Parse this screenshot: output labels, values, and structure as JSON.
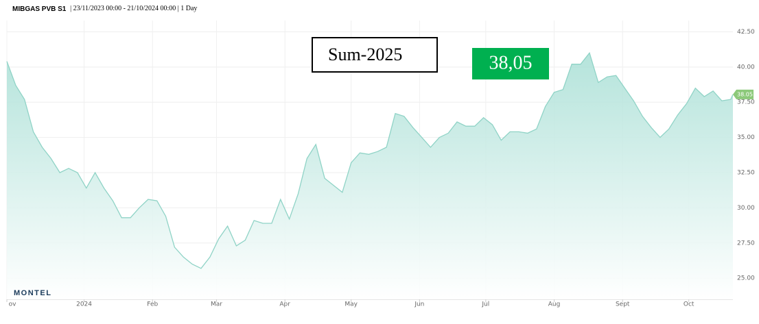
{
  "chart_data": {
    "type": "area",
    "title": "MIBGAS PVB S1",
    "subtitle": "| 23/11/2023 00:00 - 21/10/2024 00:00 | 1 Day",
    "logo": "MONTEL",
    "annotations": [
      {
        "text": "Sum-2025"
      },
      {
        "text": "38,05"
      }
    ],
    "color": "#8fd3c6",
    "grid": true,
    "xlim": [
      "2023-11-27",
      "2024-10-21"
    ],
    "ylim": [
      23.5,
      43.3
    ],
    "yticks": [
      {
        "value": 25,
        "label": "25.00"
      },
      {
        "value": 27.5,
        "label": "27.50"
      },
      {
        "value": 30,
        "label": "30.00"
      },
      {
        "value": 32.5,
        "label": "32.50"
      },
      {
        "value": 35,
        "label": "35.00"
      },
      {
        "value": 37.5,
        "label": "37.50"
      },
      {
        "value": 40,
        "label": "40.00"
      },
      {
        "value": 42.5,
        "label": "42.50"
      }
    ],
    "xticks": [
      {
        "value": "2023-11-27",
        "label": "ov"
      },
      {
        "value": "2024-01-01",
        "label": "2024"
      },
      {
        "value": "2024-02-01",
        "label": "Feb"
      },
      {
        "value": "2024-03-01",
        "label": "Mar"
      },
      {
        "value": "2024-04-01",
        "label": "Apr"
      },
      {
        "value": "2024-05-01",
        "label": "May"
      },
      {
        "value": "2024-06-01",
        "label": "Jun"
      },
      {
        "value": "2024-07-01",
        "label": "Jul"
      },
      {
        "value": "2024-08-01",
        "label": "Aug"
      },
      {
        "value": "2024-09-01",
        "label": "Sept"
      },
      {
        "value": "2024-10-01",
        "label": "Oct"
      }
    ],
    "x": [
      "2023-11-27",
      "2023-12-01",
      "2023-12-05",
      "2023-12-09",
      "2023-12-13",
      "2023-12-17",
      "2023-12-21",
      "2023-12-25",
      "2023-12-29",
      "2024-01-02",
      "2024-01-06",
      "2024-01-10",
      "2024-01-14",
      "2024-01-18",
      "2024-01-22",
      "2024-01-26",
      "2024-01-30",
      "2024-02-03",
      "2024-02-07",
      "2024-02-11",
      "2024-02-15",
      "2024-02-19",
      "2024-02-23",
      "2024-02-27",
      "2024-03-02",
      "2024-03-06",
      "2024-03-10",
      "2024-03-14",
      "2024-03-18",
      "2024-03-22",
      "2024-03-26",
      "2024-03-30",
      "2024-04-03",
      "2024-04-07",
      "2024-04-11",
      "2024-04-15",
      "2024-04-19",
      "2024-04-23",
      "2024-04-27",
      "2024-05-01",
      "2024-05-05",
      "2024-05-09",
      "2024-05-13",
      "2024-05-17",
      "2024-05-21",
      "2024-05-25",
      "2024-05-29",
      "2024-06-02",
      "2024-06-06",
      "2024-06-10",
      "2024-06-14",
      "2024-06-18",
      "2024-06-22",
      "2024-06-26",
      "2024-06-30",
      "2024-07-04",
      "2024-07-08",
      "2024-07-12",
      "2024-07-16",
      "2024-07-20",
      "2024-07-24",
      "2024-07-28",
      "2024-08-01",
      "2024-08-05",
      "2024-08-09",
      "2024-08-13",
      "2024-08-17",
      "2024-08-21",
      "2024-08-25",
      "2024-08-29",
      "2024-09-02",
      "2024-09-06",
      "2024-09-10",
      "2024-09-14",
      "2024-09-18",
      "2024-09-22",
      "2024-09-26",
      "2024-09-30",
      "2024-10-04",
      "2024-10-08",
      "2024-10-12",
      "2024-10-16",
      "2024-10-20",
      "2024-10-21"
    ],
    "values": [
      40.4,
      38.7,
      37.7,
      35.4,
      34.3,
      33.5,
      32.5,
      32.8,
      32.5,
      31.4,
      32.5,
      31.4,
      30.5,
      29.3,
      29.3,
      30.0,
      30.6,
      30.5,
      29.4,
      27.2,
      26.5,
      26.0,
      25.7,
      26.5,
      27.8,
      28.7,
      27.3,
      27.7,
      29.1,
      28.9,
      28.9,
      30.6,
      29.2,
      31.0,
      33.5,
      34.5,
      32.1,
      31.6,
      31.1,
      33.2,
      33.9,
      33.8,
      34.0,
      34.3,
      36.7,
      36.5,
      35.7,
      35.0,
      34.3,
      35.0,
      35.3,
      36.1,
      35.8,
      35.8,
      36.4,
      35.9,
      34.8,
      35.4,
      35.4,
      35.3,
      35.6,
      37.2,
      38.2,
      38.4,
      40.2,
      40.2,
      41.0,
      38.9,
      39.3,
      39.4,
      38.5,
      37.6,
      36.5,
      35.7,
      35.0,
      35.6,
      36.6,
      37.4,
      38.5,
      37.9,
      38.3,
      37.6,
      37.7,
      38.05
    ]
  }
}
